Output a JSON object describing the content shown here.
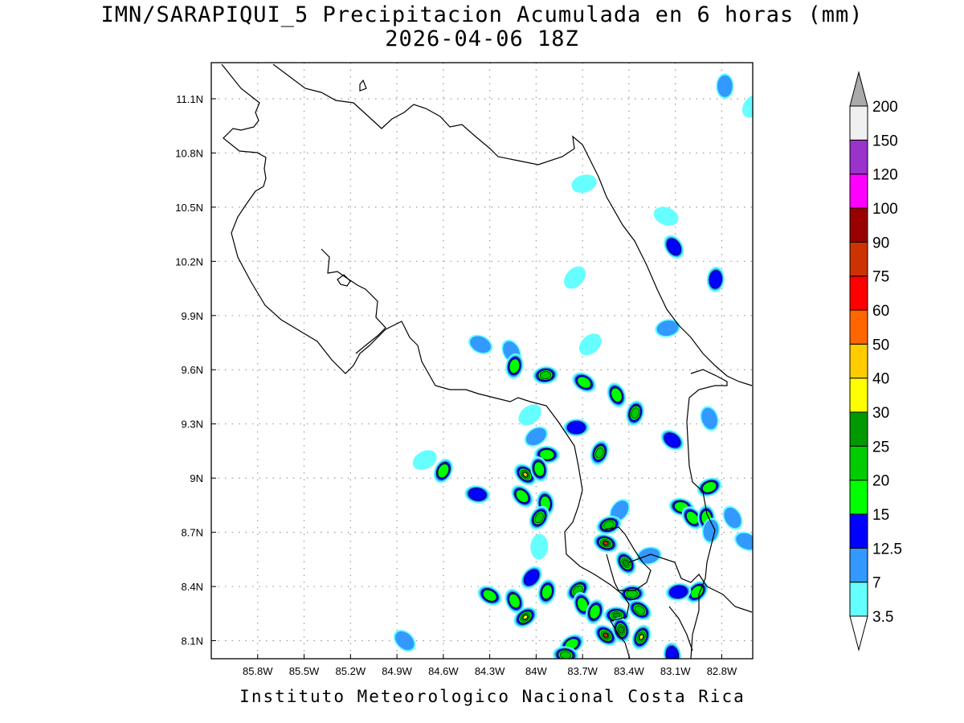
{
  "title": {
    "line1": "IMN/SARAPIQUI_5 Precipitacion Acumulada en 6 horas (mm)",
    "line2": "2026-04-06 18Z"
  },
  "footer": "Instituto Meteorologico Nacional Costa Rica",
  "map": {
    "lon_range": [
      -86.1,
      -82.6
    ],
    "lat_range": [
      8.0,
      11.3
    ],
    "lon_ticks": [
      {
        "value": -85.8,
        "label": "85.8W"
      },
      {
        "value": -85.5,
        "label": "85.5W"
      },
      {
        "value": -85.2,
        "label": "85.2W"
      },
      {
        "value": -84.9,
        "label": "84.9W"
      },
      {
        "value": -84.6,
        "label": "84.6W"
      },
      {
        "value": -84.3,
        "label": "84.3W"
      },
      {
        "value": -84.0,
        "label": "84W"
      },
      {
        "value": -83.7,
        "label": "83.7W"
      },
      {
        "value": -83.4,
        "label": "83.4W"
      },
      {
        "value": -83.1,
        "label": "83.1W"
      },
      {
        "value": -82.8,
        "label": "82.8W"
      }
    ],
    "lat_ticks": [
      {
        "value": 8.1,
        "label": "8.1N"
      },
      {
        "value": 8.4,
        "label": "8.4N"
      },
      {
        "value": 8.7,
        "label": "8.7N"
      },
      {
        "value": 9.0,
        "label": "9N"
      },
      {
        "value": 9.3,
        "label": "9.3N"
      },
      {
        "value": 9.6,
        "label": "9.6N"
      },
      {
        "value": 9.9,
        "label": "9.9N"
      },
      {
        "value": 10.2,
        "label": "10.2N"
      },
      {
        "value": 10.5,
        "label": "10.5N"
      },
      {
        "value": 10.8,
        "label": "10.8N"
      },
      {
        "value": 11.1,
        "label": "11.1N"
      }
    ],
    "grid": true,
    "precip_cells": [
      {
        "lon": -82.78,
        "lat": 11.17,
        "mm": 7
      },
      {
        "lon": -82.6,
        "lat": 11.06,
        "mm": 3.5
      },
      {
        "lon": -83.69,
        "lat": 10.63,
        "mm": 3.5
      },
      {
        "lon": -83.16,
        "lat": 10.45,
        "mm": 3.5
      },
      {
        "lon": -83.11,
        "lat": 10.28,
        "mm": 12.5
      },
      {
        "lon": -82.84,
        "lat": 10.1,
        "mm": 12.5
      },
      {
        "lon": -83.75,
        "lat": 10.11,
        "mm": 3.5
      },
      {
        "lon": -83.15,
        "lat": 9.83,
        "mm": 7
      },
      {
        "lon": -84.36,
        "lat": 9.74,
        "mm": 7
      },
      {
        "lon": -84.16,
        "lat": 9.7,
        "mm": 7
      },
      {
        "lon": -84.14,
        "lat": 9.62,
        "mm": 15
      },
      {
        "lon": -83.65,
        "lat": 9.74,
        "mm": 3.5
      },
      {
        "lon": -83.94,
        "lat": 9.57,
        "mm": 20
      },
      {
        "lon": -83.69,
        "lat": 9.53,
        "mm": 15
      },
      {
        "lon": -83.48,
        "lat": 9.46,
        "mm": 15
      },
      {
        "lon": -83.36,
        "lat": 9.36,
        "mm": 20
      },
      {
        "lon": -84.04,
        "lat": 9.35,
        "mm": 3.5
      },
      {
        "lon": -83.74,
        "lat": 9.28,
        "mm": 12.5
      },
      {
        "lon": -83.12,
        "lat": 9.21,
        "mm": 12.5
      },
      {
        "lon": -82.88,
        "lat": 9.33,
        "mm": 7
      },
      {
        "lon": -83.59,
        "lat": 9.14,
        "mm": 20
      },
      {
        "lon": -84.0,
        "lat": 9.23,
        "mm": 7
      },
      {
        "lon": -83.93,
        "lat": 9.13,
        "mm": 15
      },
      {
        "lon": -84.07,
        "lat": 9.02,
        "mm": 40
      },
      {
        "lon": -83.98,
        "lat": 9.05,
        "mm": 15
      },
      {
        "lon": -84.6,
        "lat": 9.04,
        "mm": 15
      },
      {
        "lon": -84.72,
        "lat": 9.1,
        "mm": 3.5
      },
      {
        "lon": -84.38,
        "lat": 8.91,
        "mm": 12.5
      },
      {
        "lon": -84.09,
        "lat": 8.9,
        "mm": 15
      },
      {
        "lon": -83.94,
        "lat": 8.86,
        "mm": 15
      },
      {
        "lon": -83.98,
        "lat": 8.78,
        "mm": 20
      },
      {
        "lon": -82.88,
        "lat": 8.95,
        "mm": 15
      },
      {
        "lon": -83.06,
        "lat": 8.84,
        "mm": 15
      },
      {
        "lon": -82.99,
        "lat": 8.78,
        "mm": 15
      },
      {
        "lon": -82.9,
        "lat": 8.78,
        "mm": 15
      },
      {
        "lon": -83.46,
        "lat": 8.82,
        "mm": 7
      },
      {
        "lon": -83.53,
        "lat": 8.74,
        "mm": 20
      },
      {
        "lon": -83.55,
        "lat": 8.64,
        "mm": 75
      },
      {
        "lon": -83.42,
        "lat": 8.53,
        "mm": 25
      },
      {
        "lon": -83.98,
        "lat": 8.62,
        "mm": 3.5
      },
      {
        "lon": -84.03,
        "lat": 8.45,
        "mm": 12.5
      },
      {
        "lon": -83.27,
        "lat": 8.57,
        "mm": 7
      },
      {
        "lon": -82.64,
        "lat": 8.65,
        "mm": 7
      },
      {
        "lon": -82.73,
        "lat": 8.78,
        "mm": 7
      },
      {
        "lon": -82.87,
        "lat": 8.71,
        "mm": 7
      },
      {
        "lon": -82.96,
        "lat": 8.37,
        "mm": 15
      },
      {
        "lon": -83.08,
        "lat": 8.37,
        "mm": 12.5
      },
      {
        "lon": -84.3,
        "lat": 8.35,
        "mm": 15
      },
      {
        "lon": -84.14,
        "lat": 8.32,
        "mm": 15
      },
      {
        "lon": -83.93,
        "lat": 8.37,
        "mm": 15
      },
      {
        "lon": -83.73,
        "lat": 8.38,
        "mm": 20
      },
      {
        "lon": -83.38,
        "lat": 8.36,
        "mm": 20
      },
      {
        "lon": -83.33,
        "lat": 8.27,
        "mm": 20
      },
      {
        "lon": -83.7,
        "lat": 8.3,
        "mm": 15
      },
      {
        "lon": -83.62,
        "lat": 8.26,
        "mm": 15
      },
      {
        "lon": -84.07,
        "lat": 8.23,
        "mm": 30
      },
      {
        "lon": -83.48,
        "lat": 8.24,
        "mm": 25
      },
      {
        "lon": -83.55,
        "lat": 8.13,
        "mm": 75
      },
      {
        "lon": -83.45,
        "lat": 8.16,
        "mm": 25
      },
      {
        "lon": -83.32,
        "lat": 8.12,
        "mm": 30
      },
      {
        "lon": -83.77,
        "lat": 8.08,
        "mm": 15
      },
      {
        "lon": -83.81,
        "lat": 8.02,
        "mm": 20
      },
      {
        "lon": -84.85,
        "lat": 8.1,
        "mm": 7
      },
      {
        "lon": -83.12,
        "lat": 8.02,
        "mm": 12.5
      }
    ]
  },
  "colorbar": {
    "levels": [
      {
        "label": "3.5",
        "color": "#66ffff"
      },
      {
        "label": "7",
        "color": "#3399ff"
      },
      {
        "label": "12.5",
        "color": "#0000ff"
      },
      {
        "label": "15",
        "color": "#00ff00"
      },
      {
        "label": "20",
        "color": "#00cc00"
      },
      {
        "label": "25",
        "color": "#009900"
      },
      {
        "label": "30",
        "color": "#ffff00"
      },
      {
        "label": "40",
        "color": "#ffcc00"
      },
      {
        "label": "50",
        "color": "#ff6600"
      },
      {
        "label": "60",
        "color": "#ff0000"
      },
      {
        "label": "75",
        "color": "#cc3300"
      },
      {
        "label": "90",
        "color": "#990000"
      },
      {
        "label": "100",
        "color": "#ff00ff"
      },
      {
        "label": "120",
        "color": "#9933cc"
      },
      {
        "label": "150",
        "color": "#f0f0f0"
      },
      {
        "label": "200",
        "color": ""
      }
    ],
    "under_color": "#ffffff",
    "over_color": "#aaaaaa"
  }
}
